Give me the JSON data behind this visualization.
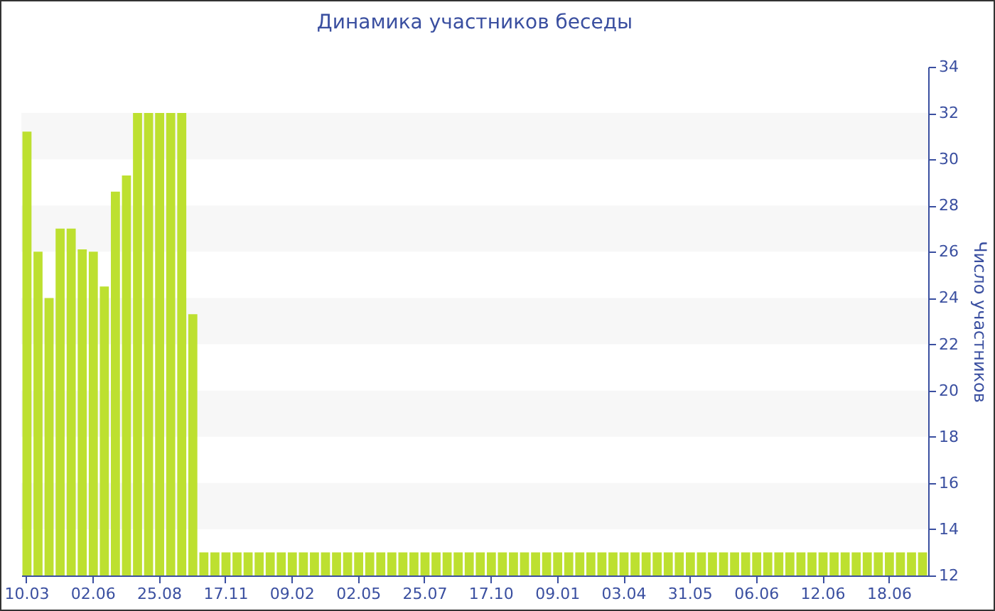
{
  "chart_data": {
    "type": "bar",
    "title": "Динамика участников беседы",
    "ylabel": "Число участников",
    "categories": [
      "10.03",
      null,
      null,
      null,
      null,
      null,
      "02.06",
      null,
      null,
      null,
      null,
      null,
      "25.08",
      null,
      null,
      null,
      null,
      null,
      "17.11",
      null,
      null,
      null,
      null,
      null,
      "09.02",
      null,
      null,
      null,
      null,
      null,
      "02.05",
      null,
      null,
      null,
      null,
      null,
      "25.07",
      null,
      null,
      null,
      null,
      null,
      "17.10",
      null,
      null,
      null,
      null,
      null,
      "09.01",
      null,
      null,
      null,
      null,
      null,
      "03.04",
      null,
      null,
      null,
      null,
      null,
      "31.05",
      null,
      null,
      null,
      null,
      null,
      "06.06",
      null,
      null,
      null,
      null,
      null,
      "12.06",
      null,
      null,
      null,
      null,
      null,
      "18.06",
      null,
      null,
      null
    ],
    "values": [
      31.2,
      26,
      24,
      27,
      27,
      26.1,
      26,
      24.5,
      28.6,
      29.3,
      32,
      32,
      32,
      32,
      32,
      23.3,
      13,
      13,
      13,
      13,
      13,
      13,
      13,
      13,
      13,
      13,
      13,
      13,
      13,
      13,
      13,
      13,
      13,
      13,
      13,
      13,
      13,
      13,
      13,
      13,
      13,
      13,
      13,
      13,
      13,
      13,
      13,
      13,
      13,
      13,
      13,
      13,
      13,
      13,
      13,
      13,
      13,
      13,
      13,
      13,
      13,
      13,
      13,
      13,
      13,
      13,
      13,
      13,
      13,
      13,
      13,
      13,
      13,
      13,
      13,
      13,
      13,
      13,
      13,
      13,
      13,
      13
    ],
    "color": "#bde030",
    "ylim": [
      12,
      34
    ],
    "yticks": [
      12,
      14,
      16,
      18,
      20,
      22,
      24,
      26,
      28,
      30,
      32,
      34
    ],
    "bands": [
      {
        "axis": "y",
        "from": 14,
        "to": 16,
        "color": "#f7f7f7"
      },
      {
        "axis": "y",
        "from": 18,
        "to": 20,
        "color": "#f7f7f7"
      },
      {
        "axis": "y",
        "from": 22,
        "to": 24,
        "color": "#f7f7f7"
      },
      {
        "axis": "y",
        "from": 26,
        "to": 28,
        "color": "#f7f7f7"
      },
      {
        "axis": "y",
        "from": 30,
        "to": 32,
        "color": "#f7f7f7"
      }
    ]
  }
}
